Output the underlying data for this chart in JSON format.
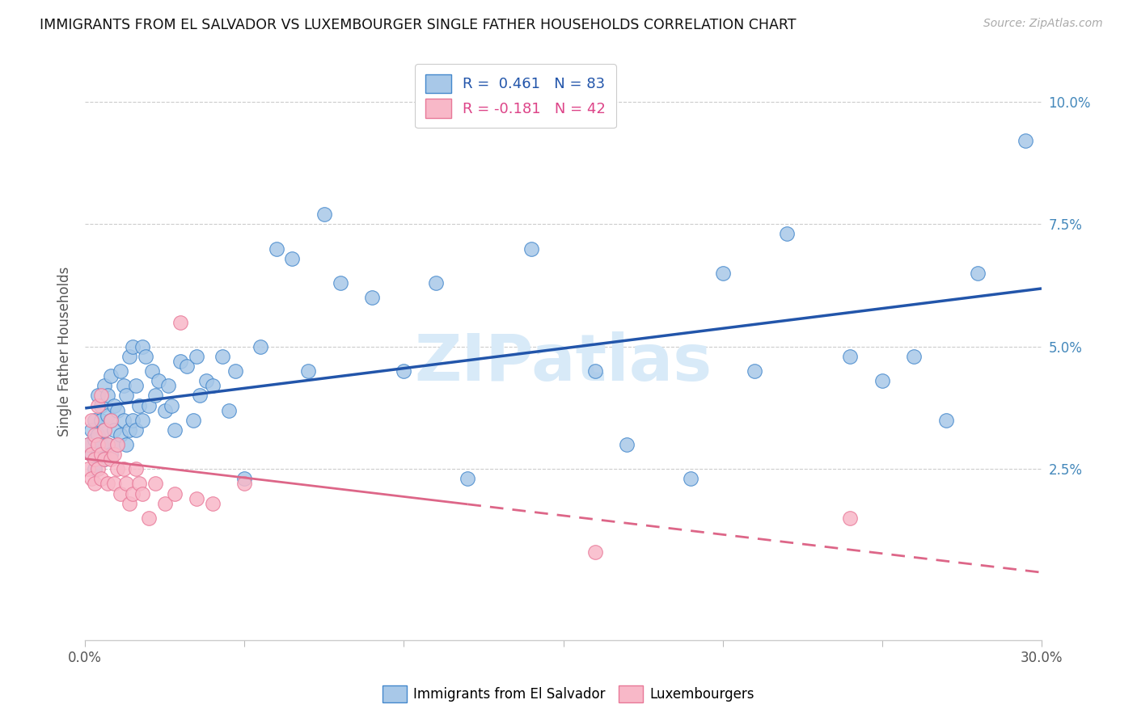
{
  "title": "IMMIGRANTS FROM EL SALVADOR VS LUXEMBOURGER SINGLE FATHER HOUSEHOLDS CORRELATION CHART",
  "source": "Source: ZipAtlas.com",
  "ylabel": "Single Father Households",
  "yticks": [
    "2.5%",
    "5.0%",
    "7.5%",
    "10.0%"
  ],
  "ytick_vals": [
    0.025,
    0.05,
    0.075,
    0.1
  ],
  "xlim": [
    0.0,
    0.3
  ],
  "ylim": [
    -0.01,
    0.108
  ],
  "legend_r1": "R =  0.461   N = 83",
  "legend_r2": "R = -0.181   N = 42",
  "blue_scatter": "#a8c8e8",
  "blue_edge": "#4488cc",
  "pink_scatter": "#f8b8c8",
  "pink_edge": "#e87898",
  "blue_line_color": "#2255aa",
  "pink_line_color": "#dd6688",
  "watermark_color": "#d8eaf8",
  "blue_scatter_x": [
    0.001,
    0.002,
    0.002,
    0.003,
    0.003,
    0.003,
    0.004,
    0.004,
    0.004,
    0.005,
    0.005,
    0.005,
    0.006,
    0.006,
    0.006,
    0.007,
    0.007,
    0.007,
    0.008,
    0.008,
    0.008,
    0.009,
    0.009,
    0.01,
    0.01,
    0.011,
    0.011,
    0.012,
    0.012,
    0.013,
    0.013,
    0.014,
    0.014,
    0.015,
    0.015,
    0.016,
    0.016,
    0.017,
    0.018,
    0.018,
    0.019,
    0.02,
    0.021,
    0.022,
    0.023,
    0.025,
    0.026,
    0.027,
    0.028,
    0.03,
    0.032,
    0.034,
    0.035,
    0.036,
    0.038,
    0.04,
    0.043,
    0.045,
    0.047,
    0.05,
    0.055,
    0.06,
    0.065,
    0.07,
    0.075,
    0.08,
    0.09,
    0.1,
    0.11,
    0.12,
    0.14,
    0.16,
    0.17,
    0.19,
    0.2,
    0.21,
    0.22,
    0.24,
    0.25,
    0.26,
    0.27,
    0.28,
    0.295
  ],
  "blue_scatter_y": [
    0.03,
    0.028,
    0.033,
    0.025,
    0.031,
    0.035,
    0.028,
    0.032,
    0.04,
    0.03,
    0.035,
    0.038,
    0.027,
    0.033,
    0.042,
    0.03,
    0.036,
    0.04,
    0.028,
    0.035,
    0.044,
    0.033,
    0.038,
    0.03,
    0.037,
    0.032,
    0.045,
    0.035,
    0.042,
    0.03,
    0.04,
    0.033,
    0.048,
    0.035,
    0.05,
    0.033,
    0.042,
    0.038,
    0.035,
    0.05,
    0.048,
    0.038,
    0.045,
    0.04,
    0.043,
    0.037,
    0.042,
    0.038,
    0.033,
    0.047,
    0.046,
    0.035,
    0.048,
    0.04,
    0.043,
    0.042,
    0.048,
    0.037,
    0.045,
    0.023,
    0.05,
    0.07,
    0.068,
    0.045,
    0.077,
    0.063,
    0.06,
    0.045,
    0.063,
    0.023,
    0.07,
    0.045,
    0.03,
    0.023,
    0.065,
    0.045,
    0.073,
    0.048,
    0.043,
    0.048,
    0.035,
    0.065,
    0.092
  ],
  "pink_scatter_x": [
    0.001,
    0.001,
    0.002,
    0.002,
    0.002,
    0.003,
    0.003,
    0.003,
    0.004,
    0.004,
    0.004,
    0.005,
    0.005,
    0.005,
    0.006,
    0.006,
    0.007,
    0.007,
    0.008,
    0.008,
    0.009,
    0.009,
    0.01,
    0.01,
    0.011,
    0.012,
    0.013,
    0.014,
    0.015,
    0.016,
    0.017,
    0.018,
    0.02,
    0.022,
    0.025,
    0.028,
    0.03,
    0.035,
    0.04,
    0.05,
    0.16,
    0.24
  ],
  "pink_scatter_y": [
    0.03,
    0.025,
    0.023,
    0.028,
    0.035,
    0.022,
    0.027,
    0.032,
    0.025,
    0.03,
    0.038,
    0.023,
    0.028,
    0.04,
    0.027,
    0.033,
    0.022,
    0.03,
    0.027,
    0.035,
    0.022,
    0.028,
    0.025,
    0.03,
    0.02,
    0.025,
    0.022,
    0.018,
    0.02,
    0.025,
    0.022,
    0.02,
    0.015,
    0.022,
    0.018,
    0.02,
    0.055,
    0.019,
    0.018,
    0.022,
    0.008,
    0.015
  ]
}
